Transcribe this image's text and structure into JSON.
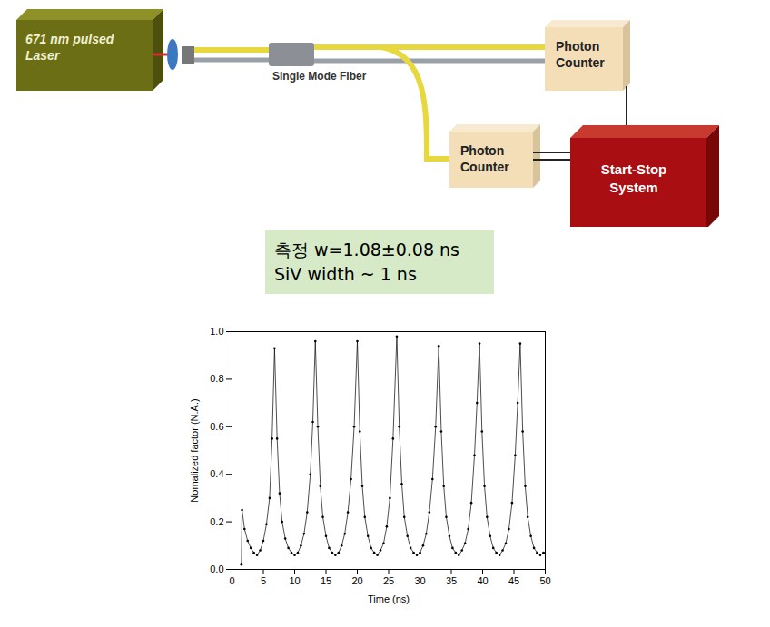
{
  "diagram": {
    "laser": [
      "671 nm pulsed",
      "Laser"
    ],
    "fiber": "Single Mode Fiber",
    "counters": [
      [
        "Photon",
        "Counter"
      ],
      [
        "Photon",
        "Counter"
      ]
    ],
    "system": [
      "Start-Stop",
      "System"
    ]
  },
  "annotation": [
    "측정 w=1.08±0.08 ns",
    "SiV width ~ 1 ns"
  ],
  "chart_data": {
    "type": "line",
    "marker": "dot",
    "color": "#000000",
    "x_label": "Time (ns)",
    "y_label": "Nomalized factor (N.A.)",
    "xlim": [
      0,
      50
    ],
    "ylim": [
      0,
      1
    ],
    "xticks": [
      0,
      5,
      10,
      15,
      20,
      25,
      30,
      35,
      40,
      45,
      50
    ],
    "yticks": [
      {
        "value": 0,
        "label": "0.0"
      },
      {
        "value": 0.2,
        "label": "0.2"
      },
      {
        "value": 0.4,
        "label": "0.4"
      },
      {
        "value": 0.6,
        "label": "0.6"
      },
      {
        "value": 0.8,
        "label": "0.8"
      },
      {
        "value": 1,
        "label": "1.0"
      }
    ],
    "x": [
      1.5,
      1.6,
      2.0,
      2.5,
      3.0,
      3.5,
      4.0,
      4.5,
      5.0,
      5.5,
      6.0,
      6.4,
      6.8,
      7.2,
      7.6,
      8.0,
      8.5,
      9.0,
      9.5,
      10.0,
      10.5,
      11.0,
      11.5,
      12.0,
      12.5,
      12.9,
      13.3,
      13.7,
      14.1,
      14.5,
      15.0,
      15.5,
      16.0,
      16.5,
      17.0,
      17.5,
      18.0,
      18.5,
      19.0,
      19.5,
      20.0,
      20.4,
      20.8,
      21.2,
      21.7,
      22.2,
      22.7,
      23.2,
      23.7,
      24.2,
      24.7,
      25.2,
      25.7,
      26.3,
      26.7,
      27.1,
      27.5,
      28.0,
      28.5,
      29.0,
      29.5,
      30.0,
      30.5,
      31.0,
      31.5,
      32.0,
      32.5,
      33.0,
      33.4,
      33.8,
      34.2,
      34.7,
      35.2,
      35.7,
      36.2,
      36.7,
      37.2,
      37.7,
      38.2,
      38.7,
      39.1,
      39.5,
      39.9,
      40.3,
      40.7,
      41.2,
      41.7,
      42.2,
      42.7,
      43.2,
      43.7,
      44.2,
      44.7,
      45.2,
      45.6,
      46.0,
      46.4,
      46.8,
      47.2,
      47.7,
      48.2,
      48.7,
      49.2,
      49.7,
      50.0
    ],
    "values": [
      0.02,
      0.25,
      0.17,
      0.12,
      0.09,
      0.07,
      0.06,
      0.08,
      0.12,
      0.19,
      0.3,
      0.55,
      0.93,
      0.55,
      0.32,
      0.2,
      0.13,
      0.09,
      0.07,
      0.06,
      0.07,
      0.1,
      0.15,
      0.24,
      0.4,
      0.62,
      0.96,
      0.6,
      0.35,
      0.22,
      0.14,
      0.09,
      0.07,
      0.06,
      0.07,
      0.1,
      0.15,
      0.24,
      0.38,
      0.6,
      0.96,
      0.58,
      0.35,
      0.22,
      0.14,
      0.09,
      0.07,
      0.06,
      0.08,
      0.11,
      0.18,
      0.3,
      0.55,
      0.98,
      0.6,
      0.36,
      0.22,
      0.14,
      0.09,
      0.07,
      0.06,
      0.07,
      0.1,
      0.15,
      0.24,
      0.38,
      0.6,
      0.94,
      0.58,
      0.35,
      0.22,
      0.14,
      0.09,
      0.07,
      0.06,
      0.08,
      0.11,
      0.17,
      0.28,
      0.48,
      0.7,
      0.95,
      0.58,
      0.35,
      0.22,
      0.14,
      0.09,
      0.07,
      0.06,
      0.08,
      0.11,
      0.17,
      0.28,
      0.48,
      0.7,
      0.95,
      0.58,
      0.35,
      0.22,
      0.14,
      0.09,
      0.07,
      0.06,
      0.07,
      0.07
    ]
  }
}
